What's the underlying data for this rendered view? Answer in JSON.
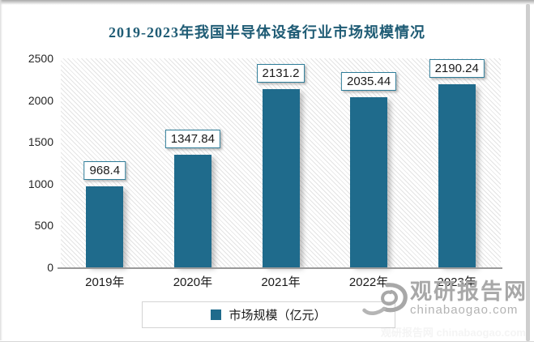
{
  "chart_data": {
    "type": "bar",
    "title": "2019-2023年我国半导体设备行业市场规模情况",
    "categories": [
      "2019年",
      "2020年",
      "2021年",
      "2022年",
      "2023年"
    ],
    "values": [
      968.4,
      1347.84,
      2131.2,
      2035.44,
      2190.24
    ],
    "data_labels": [
      "968.4",
      "1347.84",
      "2131.2",
      "2035.44",
      "2190.24"
    ],
    "ylabel": "",
    "xlabel": "",
    "ylim": [
      0,
      2500
    ],
    "yticks": [
      0,
      500,
      1000,
      1500,
      2000,
      2500
    ],
    "grid": false,
    "legend_entries": [
      "市场规模（亿元）"
    ],
    "legend_position": "bottom-center",
    "plot_background": "diagonal-hatch"
  },
  "legend": {
    "label": "市场规模（亿元）",
    "marker_color": "#1F6B8C"
  },
  "watermark": {
    "logo": "swirl-logo",
    "brand": "观研报告网",
    "domain": "chinabaogao.com",
    "faint_repeat": "观研报告网 chinabaogao.com"
  },
  "colors": {
    "bar": "#1F6B8C",
    "title": "#1F5C75",
    "label_box_border": "#2F7D99",
    "axis": "#9A9A9A",
    "watermark_gray": "#A8A8A8"
  }
}
